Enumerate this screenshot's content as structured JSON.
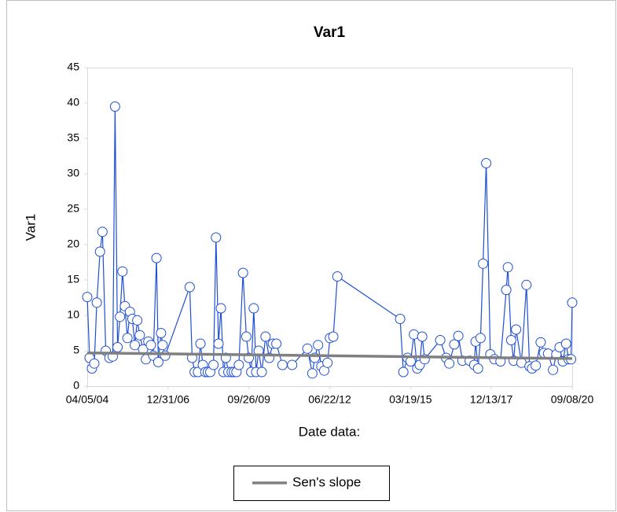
{
  "chart_data": {
    "type": "line",
    "title": "Var1",
    "xlabel": "Date data:",
    "ylabel": "Var1",
    "xlim": [
      "04/05/04",
      "09/08/20"
    ],
    "xticks": [
      "04/05/04",
      "12/31/06",
      "09/26/09",
      "06/22/12",
      "03/19/15",
      "12/13/17",
      "09/08/20"
    ],
    "ylim": [
      0,
      45
    ],
    "yticks": [
      0,
      5,
      10,
      15,
      20,
      25,
      30,
      35,
      40,
      45
    ],
    "grid": false,
    "legend": "bottom",
    "series": [
      {
        "color": "#1f4fd6",
        "marker": "circle",
        "x": [
          "04/05/04",
          "05/04/04",
          "06/02/04",
          "07/01/04",
          "08/01/04",
          "09/10/04",
          "10/10/04",
          "11/20/04",
          "01/05/05",
          "02/15/05",
          "03/15/05",
          "04/15/05",
          "05/15/05",
          "06/15/05",
          "07/15/05",
          "08/15/05",
          "09/15/05",
          "10/15/05",
          "11/15/05",
          "12/15/05",
          "01/15/06",
          "02/25/06",
          "04/01/06",
          "05/01/06",
          "06/01/06",
          "07/01/06",
          "08/10/06",
          "09/01/06",
          "10/05/06",
          "10/25/06",
          "11/25/06",
          "09/25/07",
          "10/25/07",
          "11/25/07",
          "01/05/08",
          "02/05/08",
          "03/05/08",
          "04/05/08",
          "05/05/08",
          "06/05/08",
          "07/15/08",
          "08/15/08",
          "09/15/08",
          "10/15/08",
          "11/15/08",
          "12/15/08",
          "01/15/09",
          "02/25/09",
          "03/25/09",
          "04/25/09",
          "05/25/09",
          "07/15/09",
          "08/25/09",
          "09/25/09",
          "10/25/09",
          "11/25/09",
          "12/25/09",
          "01/25/10",
          "03/05/10",
          "04/20/10",
          "06/05/10",
          "07/20/10",
          "09/01/10",
          "11/15/10",
          "03/15/11",
          "09/20/11",
          "11/20/11",
          "12/20/11",
          "01/30/12",
          "03/10/12",
          "04/15/12",
          "05/25/12",
          "06/25/12",
          "08/05/12",
          "09/25/12",
          "11/10/14",
          "12/20/14",
          "02/10/15",
          "03/20/15",
          "04/30/15",
          "06/10/15",
          "07/10/15",
          "08/10/15",
          "09/10/15",
          "03/20/16",
          "06/01/16",
          "07/10/16",
          "09/10/16",
          "10/30/16",
          "12/20/16",
          "03/20/17",
          "05/15/17",
          "06/01/17",
          "07/01/17",
          "08/01/17",
          "09/01/17",
          "10/10/17",
          "11/30/17",
          "01/20/18",
          "04/05/18",
          "06/15/18",
          "07/05/18",
          "08/15/18",
          "09/15/18",
          "10/15/18",
          "12/20/18",
          "02/20/19",
          "03/30/19",
          "04/30/19",
          "06/15/19",
          "08/15/19",
          "09/25/19",
          "11/15/19",
          "01/15/20",
          "02/25/20",
          "04/05/20",
          "05/15/20",
          "06/25/20",
          "07/25/20",
          "08/25/20",
          "09/08/20"
        ],
        "values": [
          12.6,
          4,
          2.5,
          3.2,
          11.8,
          19,
          21.8,
          5,
          4,
          4.2,
          39.5,
          5.5,
          9.8,
          16.2,
          11.3,
          6.8,
          10.5,
          9.5,
          5.8,
          9.3,
          7.2,
          5.2,
          3.8,
          6.3,
          5.8,
          4.3,
          18.1,
          3.4,
          7.5,
          5.8,
          4.3,
          14,
          4,
          2,
          2,
          6,
          3,
          2,
          2,
          2,
          3,
          21,
          6,
          11,
          2,
          4,
          2,
          2,
          2,
          2,
          3,
          16,
          7,
          4,
          2,
          11,
          2,
          5,
          2,
          7,
          4,
          6,
          6,
          3,
          3,
          5.3,
          1.8,
          4,
          5.8,
          2.8,
          2.2,
          3.3,
          6.8,
          7,
          15.5,
          9.5,
          2,
          4,
          3.5,
          7.3,
          2.5,
          3,
          7,
          3.8,
          6.5,
          4,
          3.2,
          5.9,
          7.1,
          3.6,
          3.6,
          3,
          6.3,
          2.5,
          6.8,
          17.3,
          31.5,
          4.5,
          3.8,
          3.5,
          13.6,
          16.8,
          6.5,
          3.6,
          8,
          3.3,
          14.3,
          2.8,
          2.5,
          2.9,
          6.2,
          4.7,
          4.6,
          2.3,
          4.5,
          5.5,
          3.5,
          6,
          3.8,
          3.8,
          11.8
        ]
      },
      {
        "name": "Sen's slope",
        "color": "#808080",
        "x": [
          "04/05/04",
          "09/08/20"
        ],
        "values": [
          4.7,
          3.9
        ]
      }
    ]
  }
}
